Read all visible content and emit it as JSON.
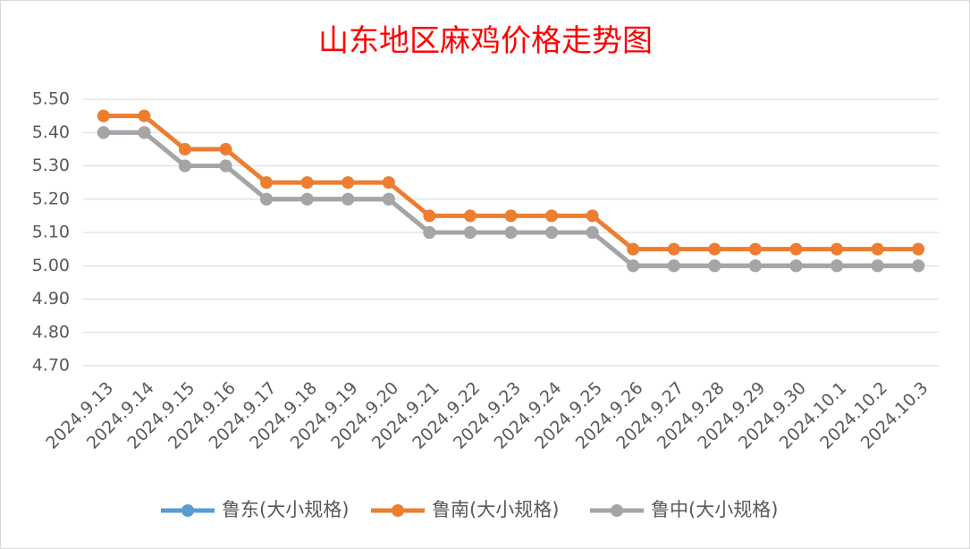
{
  "chart_data": {
    "type": "line",
    "title": "山东地区麻鸡价格走势图",
    "categories": [
      "2024.9.13",
      "2024.9.14",
      "2024.9.15",
      "2024.9.16",
      "2024.9.17",
      "2024.9.18",
      "2024.9.19",
      "2024.9.20",
      "2024.9.21",
      "2024.9.22",
      "2024.9.23",
      "2024.9.24",
      "2024.9.25",
      "2024.9.26",
      "2024.9.27",
      "2024.9.28",
      "2024.9.29",
      "2024.9.30",
      "2024.10.1",
      "2024.10.2",
      "2024.10.3"
    ],
    "series": [
      {
        "name": "鲁东(大小规格)",
        "color": "#5b9bd5",
        "values": [
          5.4,
          5.4,
          5.3,
          5.3,
          5.2,
          5.2,
          5.2,
          5.2,
          5.1,
          5.1,
          5.1,
          5.1,
          5.1,
          5.0,
          5.0,
          5.0,
          5.0,
          5.0,
          5.0,
          5.0,
          5.0
        ]
      },
      {
        "name": "鲁南(大小规格)",
        "color": "#ed7d31",
        "values": [
          5.45,
          5.45,
          5.35,
          5.35,
          5.25,
          5.25,
          5.25,
          5.25,
          5.15,
          5.15,
          5.15,
          5.15,
          5.15,
          5.05,
          5.05,
          5.05,
          5.05,
          5.05,
          5.05,
          5.05,
          5.05
        ]
      },
      {
        "name": "鲁中(大小规格)",
        "color": "#a5a5a5",
        "values": [
          5.4,
          5.4,
          5.3,
          5.3,
          5.2,
          5.2,
          5.2,
          5.2,
          5.1,
          5.1,
          5.1,
          5.1,
          5.1,
          5.0,
          5.0,
          5.0,
          5.0,
          5.0,
          5.0,
          5.0,
          5.0
        ]
      }
    ],
    "ylim": [
      4.7,
      5.5
    ],
    "yticks": [
      {
        "value": 4.7,
        "label": "4.70"
      },
      {
        "value": 4.8,
        "label": "4.80"
      },
      {
        "value": 4.9,
        "label": "4.90"
      },
      {
        "value": 5.0,
        "label": "5.00"
      },
      {
        "value": 5.1,
        "label": "5.10"
      },
      {
        "value": 5.2,
        "label": "5.20"
      },
      {
        "value": 5.3,
        "label": "5.30"
      },
      {
        "value": 5.4,
        "label": "5.40"
      },
      {
        "value": 5.5,
        "label": "5.50"
      }
    ],
    "grid": true,
    "legend": "bottom"
  }
}
